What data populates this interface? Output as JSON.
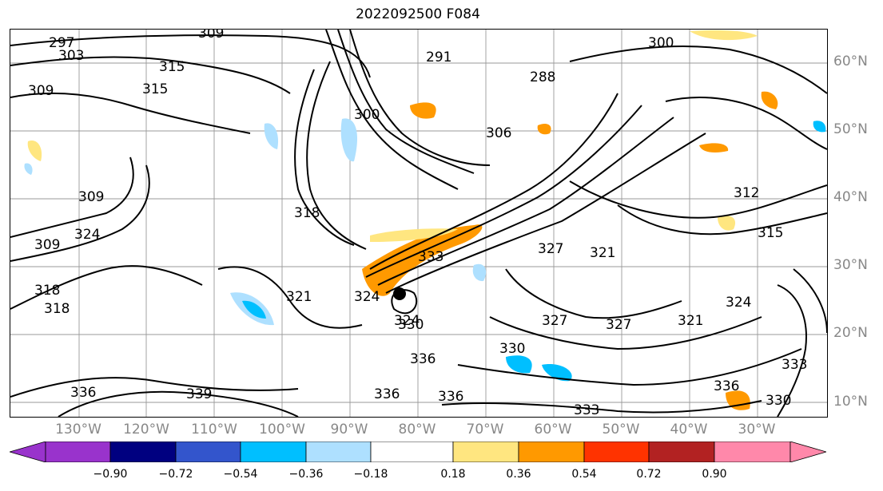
{
  "title": "2022092500 F084",
  "lat_labels": [
    "60°N",
    "50°N",
    "40°N",
    "30°N",
    "20°N",
    "10°N"
  ],
  "lon_labels": [
    "130°W",
    "120°W",
    "110°W",
    "100°W",
    "90°W",
    "80°W",
    "70°W",
    "60°W",
    "50°W",
    "40°W",
    "30°W"
  ],
  "colorbar": {
    "ticks": [
      "−0.90",
      "−0.72",
      "−0.54",
      "−0.36",
      "−0.18",
      "0.18",
      "0.36",
      "0.54",
      "0.72",
      "0.90"
    ],
    "colors": [
      "#9933cc",
      "#000080",
      "#3355cc",
      "#00bfff",
      "#aee0ff",
      "#ffffff",
      "#ffe680",
      "#ff9900",
      "#ff3300",
      "#b22222",
      "#ff88aa"
    ]
  },
  "contour_labels": [
    "297",
    "303",
    "309",
    "300",
    "315",
    "315",
    "309",
    "300",
    "291",
    "288",
    "306",
    "309",
    "318",
    "309",
    "324",
    "321",
    "327",
    "312",
    "315",
    "324",
    "327",
    "321",
    "333",
    "324",
    "321",
    "318",
    "318",
    "324",
    "330",
    "330",
    "327",
    "336",
    "336",
    "339",
    "336",
    "336",
    "333",
    "330",
    "336",
    "333",
    "330"
  ],
  "markers": {
    "storm_center": "black-dot"
  }
}
